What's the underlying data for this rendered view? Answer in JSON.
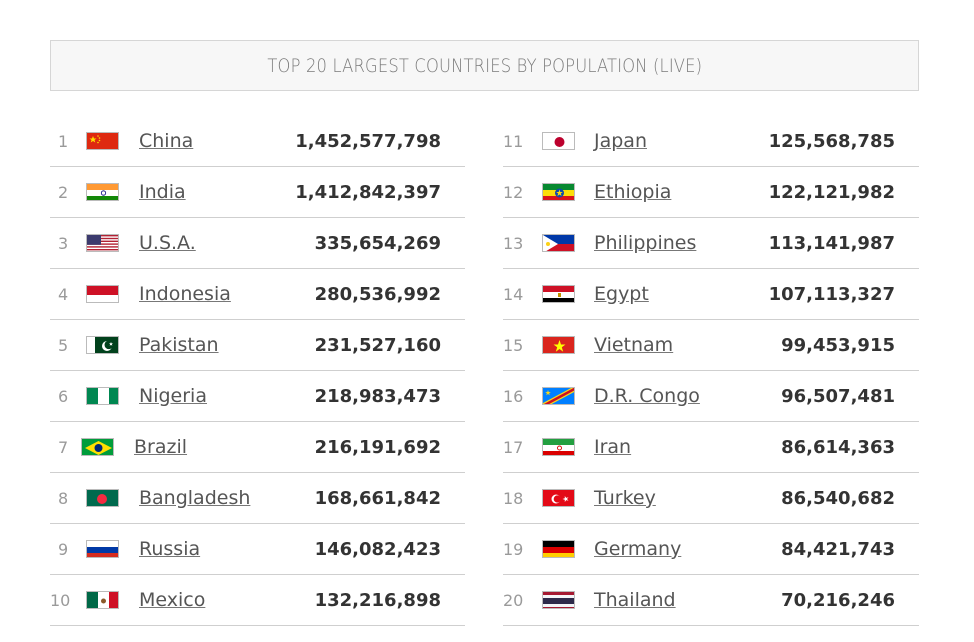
{
  "title": "TOP 20 LARGEST COUNTRIES BY POPULATION (LIVE)",
  "left": [
    {
      "rank": "1",
      "name": "China",
      "population": "1,452,577,798",
      "flag": "china-flag-icon"
    },
    {
      "rank": "2",
      "name": "India",
      "population": "1,412,842,397",
      "flag": "india-flag-icon"
    },
    {
      "rank": "3",
      "name": "U.S.A.",
      "population": "335,654,269",
      "flag": "usa-flag-icon"
    },
    {
      "rank": "4",
      "name": "Indonesia",
      "population": "280,536,992",
      "flag": "indonesia-flag-icon"
    },
    {
      "rank": "5",
      "name": "Pakistan",
      "population": "231,527,160",
      "flag": "pakistan-flag-icon"
    },
    {
      "rank": "6",
      "name": "Nigeria",
      "population": "218,983,473",
      "flag": "nigeria-flag-icon"
    },
    {
      "rank": "7",
      "name": "Brazil",
      "population": "216,191,692",
      "flag": "brazil-flag-icon"
    },
    {
      "rank": "8",
      "name": "Bangladesh",
      "population": "168,661,842",
      "flag": "bangladesh-flag-icon"
    },
    {
      "rank": "9",
      "name": "Russia",
      "population": "146,082,423",
      "flag": "russia-flag-icon"
    },
    {
      "rank": "10",
      "name": "Mexico",
      "population": "132,216,898",
      "flag": "mexico-flag-icon"
    }
  ],
  "right": [
    {
      "rank": "11",
      "name": "Japan",
      "population": "125,568,785",
      "flag": "japan-flag-icon"
    },
    {
      "rank": "12",
      "name": "Ethiopia",
      "population": "122,121,982",
      "flag": "ethiopia-flag-icon"
    },
    {
      "rank": "13",
      "name": "Philippines",
      "population": "113,141,987",
      "flag": "philippines-flag-icon"
    },
    {
      "rank": "14",
      "name": "Egypt",
      "population": "107,113,327",
      "flag": "egypt-flag-icon"
    },
    {
      "rank": "15",
      "name": "Vietnam",
      "population": "99,453,915",
      "flag": "vietnam-flag-icon"
    },
    {
      "rank": "16",
      "name": "D.R. Congo",
      "population": "96,507,481",
      "flag": "dr-congo-flag-icon"
    },
    {
      "rank": "17",
      "name": "Iran",
      "population": "86,614,363",
      "flag": "iran-flag-icon"
    },
    {
      "rank": "18",
      "name": "Turkey",
      "population": "86,540,682",
      "flag": "turkey-flag-icon"
    },
    {
      "rank": "19",
      "name": "Germany",
      "population": "84,421,743",
      "flag": "germany-flag-icon"
    },
    {
      "rank": "20",
      "name": "Thailand",
      "population": "70,216,246",
      "flag": "thailand-flag-icon"
    }
  ]
}
